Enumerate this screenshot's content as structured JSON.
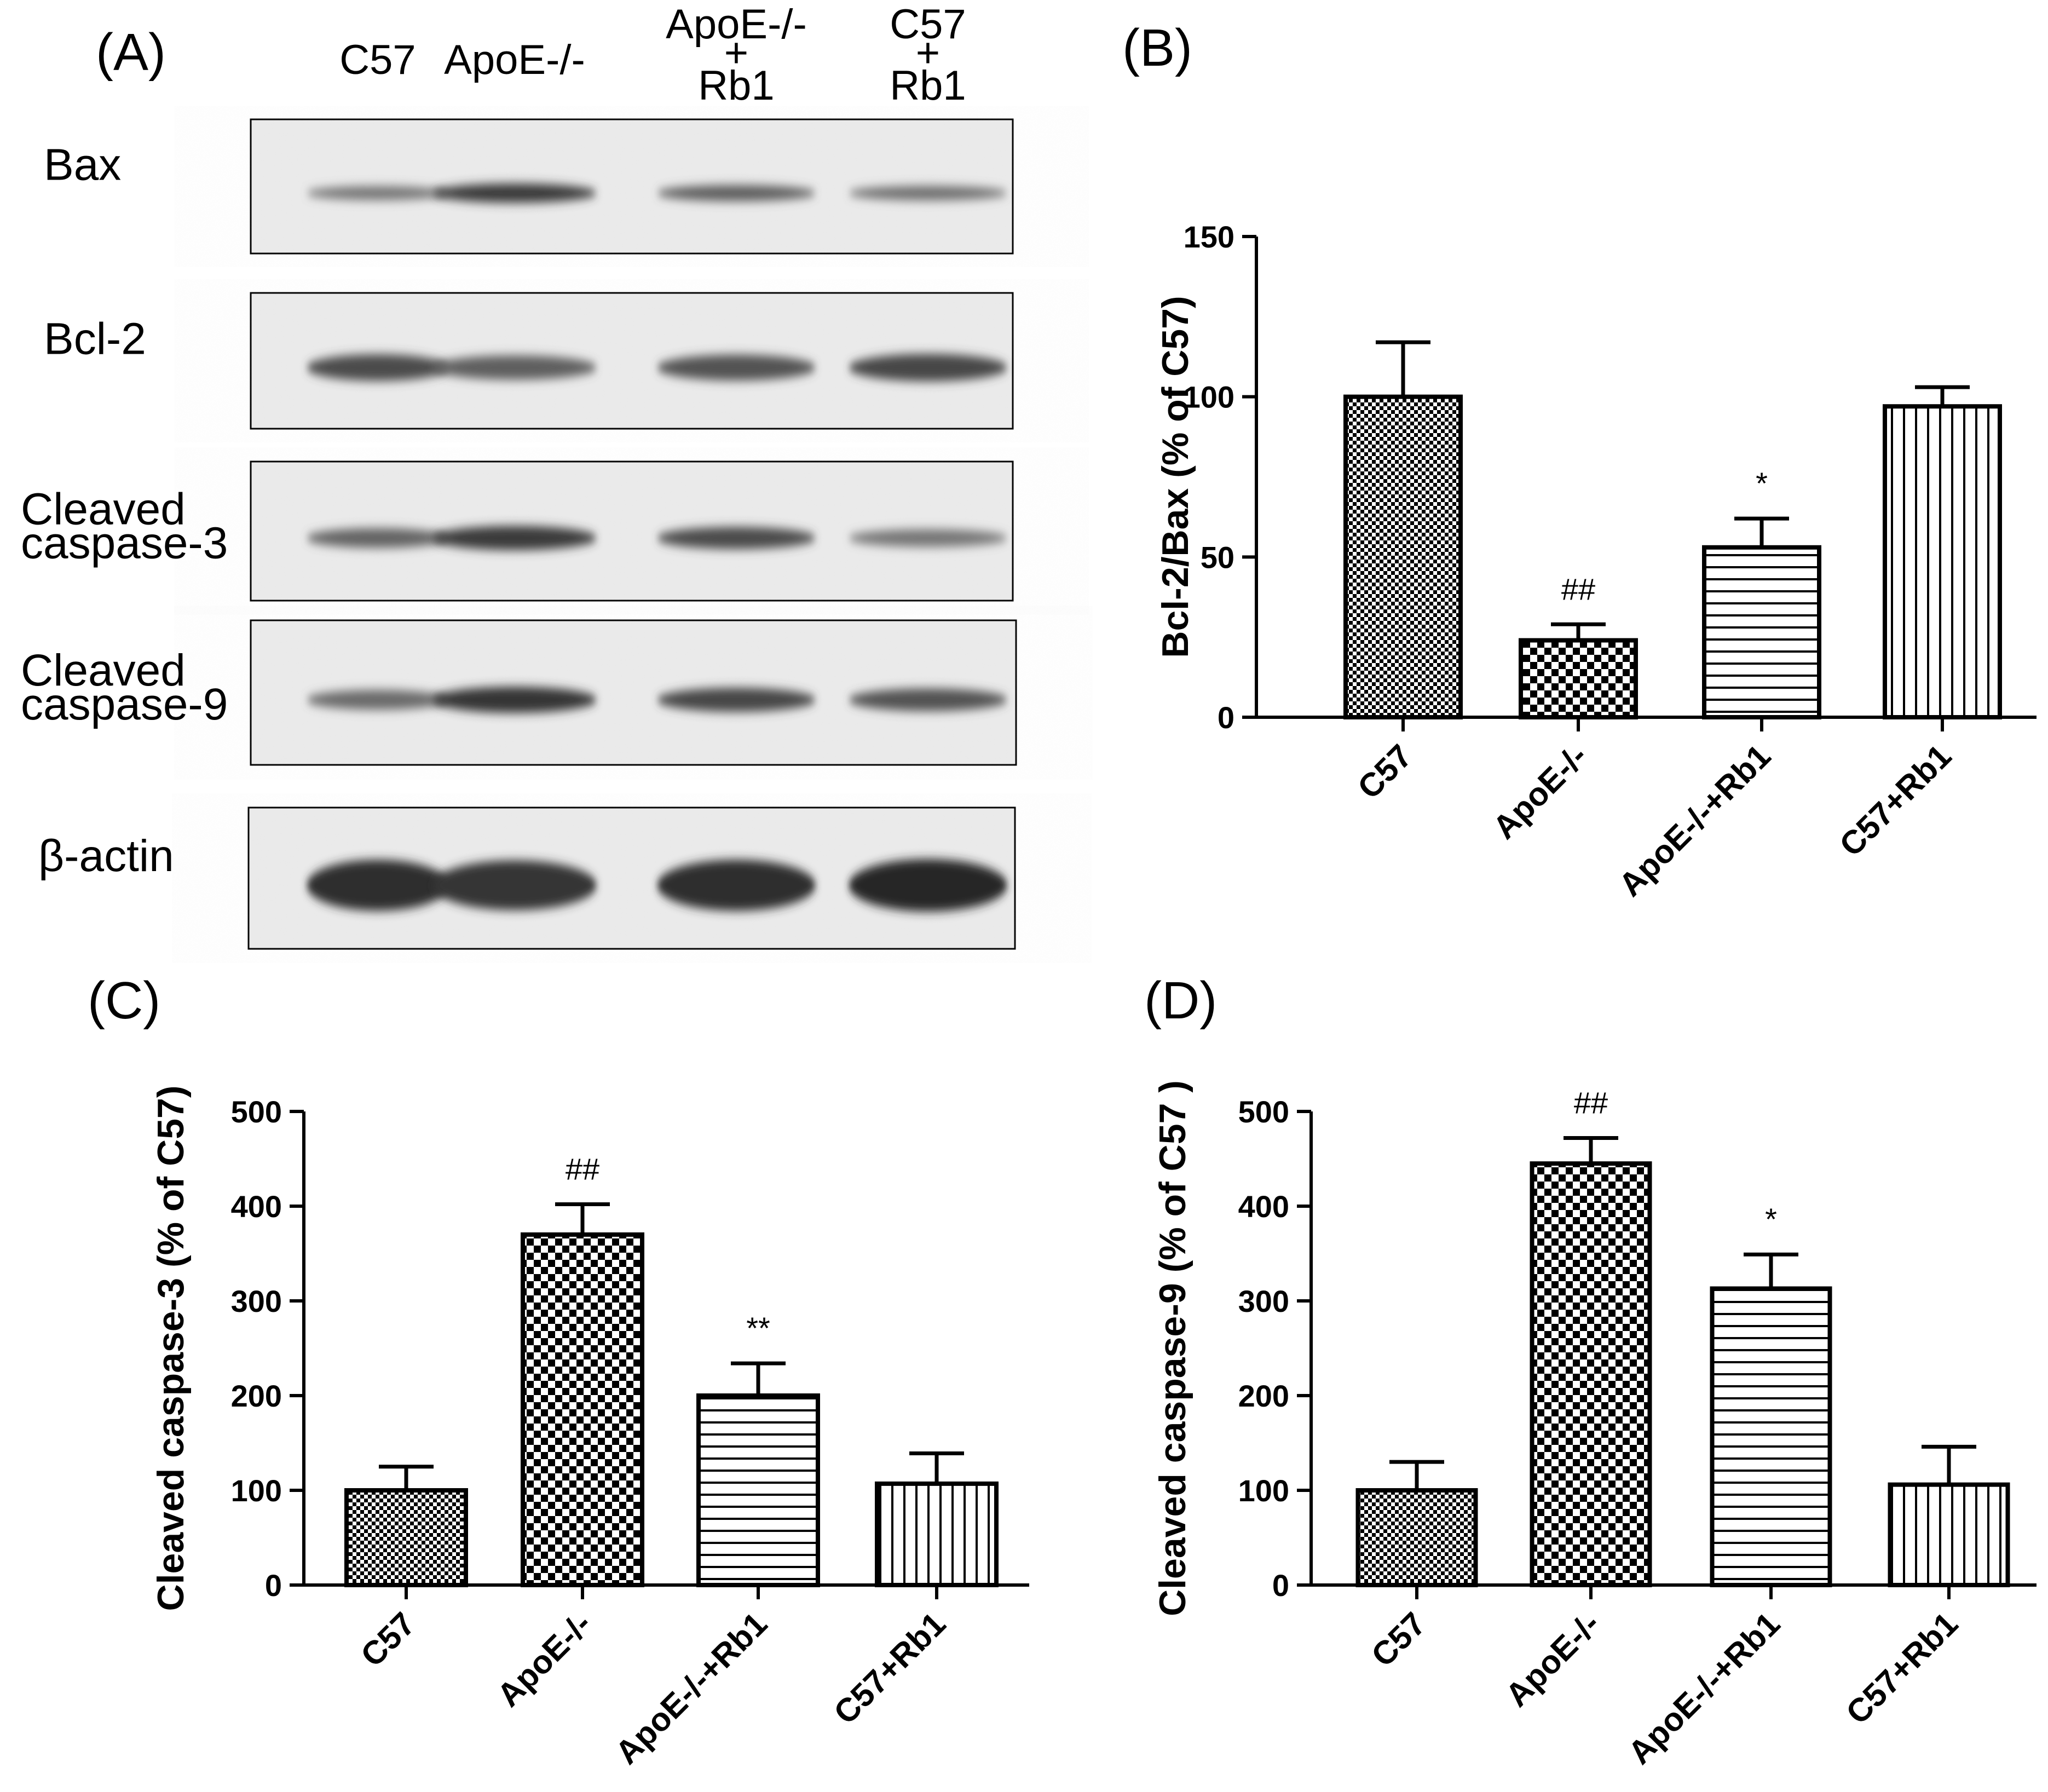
{
  "panels": {
    "A": "(A)",
    "B": "(B)",
    "C": "(C)",
    "D": "(D)"
  },
  "blot": {
    "lanes": [
      [
        "C57"
      ],
      [
        "ApoE-/-"
      ],
      [
        "ApoE-/-",
        "+",
        "Rb1"
      ],
      [
        "C57",
        "+",
        "Rb1"
      ]
    ],
    "rows": [
      {
        "label": [
          "Bax"
        ],
        "intensity": [
          0.35,
          0.85,
          0.55,
          0.4
        ]
      },
      {
        "label": [
          "Bcl-2"
        ],
        "intensity": [
          0.7,
          0.55,
          0.65,
          0.75
        ]
      },
      {
        "label": [
          "Cleaved",
          "caspase-3"
        ],
        "intensity": [
          0.5,
          0.85,
          0.7,
          0.35
        ]
      },
      {
        "label": [
          "Cleaved",
          "caspase-9"
        ],
        "intensity": [
          0.45,
          0.9,
          0.75,
          0.65
        ]
      },
      {
        "label": [
          "β-actin"
        ],
        "intensity": [
          0.95,
          0.9,
          0.95,
          1.0
        ]
      }
    ]
  },
  "chart_data": [
    {
      "id": "B",
      "type": "bar",
      "categories": [
        "C57",
        "ApoE-/-",
        "ApoE-/-+Rb1",
        "C57+Rb1"
      ],
      "values": [
        100,
        24,
        53,
        97
      ],
      "errors": [
        17,
        5,
        9,
        6
      ],
      "annotations": [
        "",
        "##",
        "*",
        ""
      ],
      "patterns": [
        "checker-small",
        "checker-large",
        "horizontal",
        "vertical"
      ],
      "ylabel": "Bcl-2/Bax (% of C57)",
      "ylim": [
        0,
        150
      ],
      "yticks": [
        0,
        50,
        100,
        150
      ]
    },
    {
      "id": "C",
      "type": "bar",
      "categories": [
        "C57",
        "ApoE-/-",
        "ApoE-/-+Rb1",
        "C57+Rb1"
      ],
      "values": [
        100,
        370,
        200,
        107
      ],
      "errors": [
        25,
        32,
        34,
        32
      ],
      "annotations": [
        "",
        "##",
        "**",
        ""
      ],
      "patterns": [
        "checker-small",
        "checker-large",
        "horizontal",
        "vertical"
      ],
      "ylabel": "Cleaved caspase-3 (% of  C57)",
      "ylim": [
        0,
        500
      ],
      "yticks": [
        0,
        100,
        200,
        300,
        400,
        500
      ]
    },
    {
      "id": "D",
      "type": "bar",
      "categories": [
        "C57",
        "ApoE-/-",
        "ApoE-/-+Rb1",
        "C57+Rb1"
      ],
      "values": [
        100,
        445,
        313,
        106
      ],
      "errors": [
        30,
        27,
        36,
        40
      ],
      "annotations": [
        "",
        "##",
        "*",
        ""
      ],
      "patterns": [
        "checker-small",
        "checker-large",
        "horizontal",
        "vertical"
      ],
      "ylabel": "Cleaved caspase-9 (% of C57 )",
      "ylim": [
        0,
        500
      ],
      "yticks": [
        0,
        100,
        200,
        300,
        400,
        500
      ]
    }
  ]
}
